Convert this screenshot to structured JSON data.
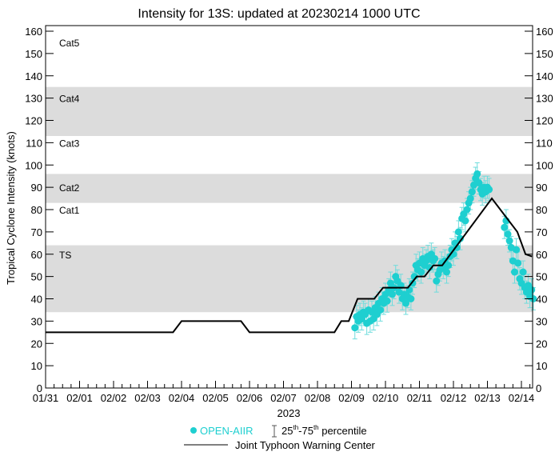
{
  "chart_data": {
    "type": "scatter",
    "title": "Intensity for 13S: updated at 20230214 1000 UTC",
    "ylabel": "Tropical Cyclone Intensity (knots)",
    "xlabel": "2023",
    "ylim": [
      0,
      160
    ],
    "yticks": [
      0,
      10,
      20,
      30,
      40,
      50,
      60,
      70,
      80,
      90,
      100,
      110,
      120,
      130,
      140,
      150,
      160
    ],
    "xlim_days_since_0131": [
      0,
      14.42
    ],
    "xtick_labels": [
      "01/31",
      "02/01",
      "02/02",
      "02/03",
      "02/04",
      "02/05",
      "02/06",
      "02/07",
      "02/08",
      "02/09",
      "02/10",
      "02/11",
      "02/12",
      "02/13",
      "02/14"
    ],
    "category_bands": [
      {
        "label": "TS",
        "min": 34,
        "max": 64,
        "shaded": true,
        "label_value": 60
      },
      {
        "label": "Cat1",
        "min": 64,
        "max": 83,
        "shaded": false,
        "label_value": 80
      },
      {
        "label": "Cat2",
        "min": 83,
        "max": 96,
        "shaded": true,
        "label_value": 90
      },
      {
        "label": "Cat3",
        "min": 96,
        "max": 113,
        "shaded": false,
        "label_value": 110
      },
      {
        "label": "Cat4",
        "min": 113,
        "max": 135,
        "shaded": true,
        "label_value": 130
      },
      {
        "label": "Cat5",
        "min": 135,
        "max": 160,
        "shaded": false,
        "label_value": 155
      }
    ],
    "band_color": "#dcdcdc",
    "series": [
      {
        "name": "Joint Typhoon Warning Center",
        "type": "line",
        "color": "#000000",
        "points": [
          [
            0,
            25
          ],
          [
            3.75,
            25
          ],
          [
            4,
            30
          ],
          [
            5.75,
            30
          ],
          [
            6,
            25
          ],
          [
            8.5,
            25
          ],
          [
            8.7,
            30
          ],
          [
            8.92,
            30
          ],
          [
            9.18,
            40
          ],
          [
            9.67,
            40
          ],
          [
            9.93,
            45
          ],
          [
            10.66,
            45
          ],
          [
            10.92,
            50
          ],
          [
            11.15,
            50
          ],
          [
            11.41,
            55
          ],
          [
            11.67,
            55
          ],
          [
            13.13,
            85
          ],
          [
            13.88,
            70
          ],
          [
            14.12,
            60
          ],
          [
            14.31,
            59
          ]
        ]
      },
      {
        "name": "OPEN-AIIR",
        "type": "scatter",
        "color": "#1ecfd0",
        "percentile_spread": [
          -5,
          5
        ],
        "points": [
          [
            9.1,
            27
          ],
          [
            9.15,
            32
          ],
          [
            9.2,
            30
          ],
          [
            9.25,
            33
          ],
          [
            9.3,
            31
          ],
          [
            9.35,
            34
          ],
          [
            9.4,
            33
          ],
          [
            9.45,
            29
          ],
          [
            9.5,
            35
          ],
          [
            9.55,
            30
          ],
          [
            9.6,
            34
          ],
          [
            9.65,
            31
          ],
          [
            9.7,
            36
          ],
          [
            9.75,
            33
          ],
          [
            9.8,
            38
          ],
          [
            9.85,
            35
          ],
          [
            9.9,
            40
          ],
          [
            9.95,
            38
          ],
          [
            10.0,
            42
          ],
          [
            10.05,
            39
          ],
          [
            10.1,
            44
          ],
          [
            10.15,
            47
          ],
          [
            10.2,
            42
          ],
          [
            10.25,
            45
          ],
          [
            10.3,
            50
          ],
          [
            10.35,
            48
          ],
          [
            10.4,
            43
          ],
          [
            10.45,
            46
          ],
          [
            10.5,
            40
          ],
          [
            10.55,
            42
          ],
          [
            10.6,
            38
          ],
          [
            10.65,
            41
          ],
          [
            10.7,
            44
          ],
          [
            10.75,
            40
          ],
          [
            10.8,
            47
          ],
          [
            10.85,
            50
          ],
          [
            10.9,
            55
          ],
          [
            10.95,
            53
          ],
          [
            11.0,
            56
          ],
          [
            11.05,
            52
          ],
          [
            11.1,
            58
          ],
          [
            11.15,
            55
          ],
          [
            11.2,
            57
          ],
          [
            11.25,
            59
          ],
          [
            11.3,
            54
          ],
          [
            11.35,
            60
          ],
          [
            11.4,
            57
          ],
          [
            11.45,
            58
          ],
          [
            11.5,
            48
          ],
          [
            11.55,
            51
          ],
          [
            11.6,
            53
          ],
          [
            11.65,
            56
          ],
          [
            11.7,
            54
          ],
          [
            11.75,
            57
          ],
          [
            11.8,
            52
          ],
          [
            11.85,
            55
          ],
          [
            11.9,
            59
          ],
          [
            11.95,
            62
          ],
          [
            12.0,
            60
          ],
          [
            12.05,
            65
          ],
          [
            12.1,
            63
          ],
          [
            12.15,
            70
          ],
          [
            12.2,
            67
          ],
          [
            12.25,
            76
          ],
          [
            12.3,
            78
          ],
          [
            12.35,
            75
          ],
          [
            12.4,
            80
          ],
          [
            12.45,
            83
          ],
          [
            12.5,
            85
          ],
          [
            12.55,
            88
          ],
          [
            12.6,
            91
          ],
          [
            12.65,
            94
          ],
          [
            12.7,
            96
          ],
          [
            12.75,
            92
          ],
          [
            12.8,
            89
          ],
          [
            12.85,
            87
          ],
          [
            12.9,
            90
          ],
          [
            12.95,
            88
          ],
          [
            13.0,
            90
          ],
          [
            13.05,
            89
          ],
          [
            13.5,
            72
          ],
          [
            13.55,
            75
          ],
          [
            13.6,
            69
          ],
          [
            13.65,
            66
          ],
          [
            13.7,
            63
          ],
          [
            13.75,
            57
          ],
          [
            13.8,
            52
          ],
          [
            13.85,
            62
          ],
          [
            13.9,
            56
          ],
          [
            13.95,
            49
          ],
          [
            14.0,
            47
          ],
          [
            14.05,
            52
          ],
          [
            14.1,
            45
          ],
          [
            14.15,
            43
          ],
          [
            14.2,
            46
          ],
          [
            14.25,
            41
          ],
          [
            14.3,
            44
          ],
          [
            14.35,
            40
          ]
        ]
      }
    ],
    "legend": {
      "placement": "bottom-center",
      "scatter_label": "OPEN-AIIR",
      "percentile_label_a": "25",
      "percentile_label_sup_a": "th",
      "percentile_label_b": "-75",
      "percentile_label_sup_b": "th",
      "percentile_label_c": " percentile",
      "line_label": "Joint Typhoon Warning Center"
    }
  }
}
